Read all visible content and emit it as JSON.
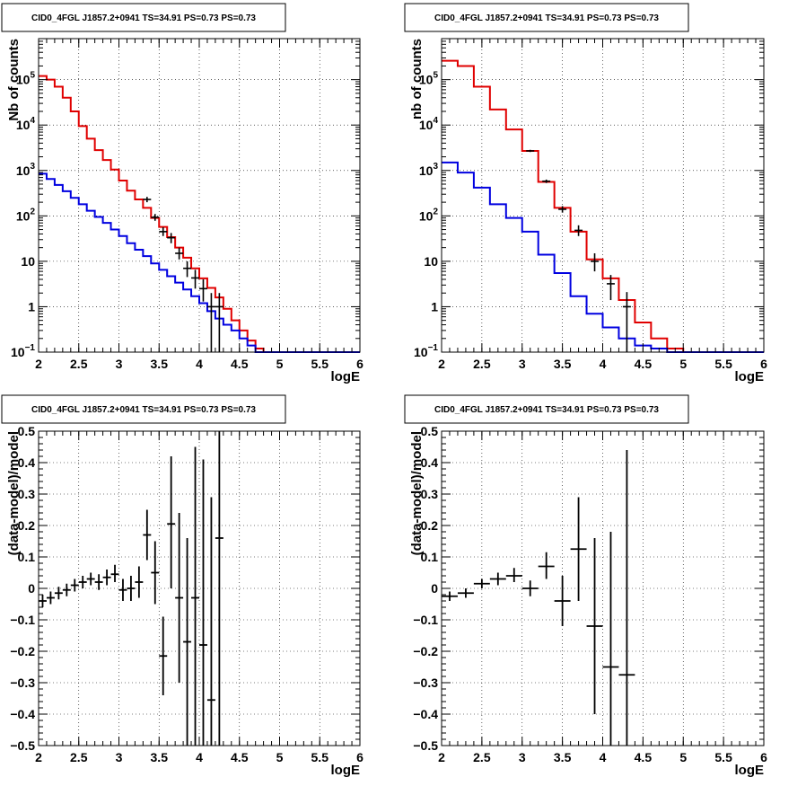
{
  "chart_data": [
    {
      "type": "step",
      "title": "CID0_4FGL J1857.2+0941 TS=34.91 PS=0.73 PS=0.73",
      "xlabel": "logE",
      "ylabel": "Nb of counts",
      "xlim": [
        2,
        6
      ],
      "ylim": [
        0.1,
        800000
      ],
      "yscale": "log",
      "grid": true,
      "x_ticks": [
        "2",
        "2.5",
        "3",
        "3.5",
        "4",
        "4.5",
        "5",
        "5.5",
        "6"
      ],
      "y_ticks": [
        {
          "v": 0.1,
          "base": "10",
          "exp": "−1"
        },
        {
          "v": 1,
          "t": "1"
        },
        {
          "v": 10,
          "t": "10"
        },
        {
          "v": 100,
          "base": "10",
          "exp": "2"
        },
        {
          "v": 1000,
          "base": "10",
          "exp": "3"
        },
        {
          "v": 10000,
          "base": "10",
          "exp": "4"
        },
        {
          "v": 100000,
          "base": "10",
          "exp": "5"
        }
      ],
      "bin_edges": [
        2,
        2.1,
        2.2,
        2.3,
        2.4,
        2.5,
        2.6,
        2.7,
        2.8,
        2.9,
        3.0,
        3.1,
        3.2,
        3.3,
        3.4,
        3.5,
        3.6,
        3.7,
        3.8,
        3.9,
        4.0,
        4.1,
        4.2,
        4.3,
        4.4,
        4.5,
        4.6,
        4.7,
        4.8,
        4.9,
        5.0,
        5.1,
        5.2,
        5.3,
        5.4,
        5.5,
        5.6,
        5.7,
        5.8,
        5.9,
        6.0
      ],
      "series": [
        {
          "role": "model-total",
          "color": "#e00000",
          "values": [
            120000,
            100000,
            70000,
            40000,
            20000,
            9500,
            5000,
            2800,
            1700,
            1050,
            600,
            360,
            230,
            150,
            90,
            57,
            34,
            20,
            12,
            7,
            4.2,
            2.6,
            1.6,
            0.9,
            0.5,
            0.3,
            0.18,
            0.12,
            0.1,
            0.1,
            0.1,
            0.1,
            0.1,
            0.1,
            0.1,
            0.1,
            0.1,
            0.1,
            0.1,
            0.1
          ]
        },
        {
          "role": "model-component",
          "color": "#0000e0",
          "values": [
            850,
            650,
            480,
            350,
            250,
            180,
            130,
            95,
            70,
            50,
            36,
            25,
            18,
            13,
            9,
            6.5,
            4.7,
            3.4,
            2.4,
            1.7,
            1.2,
            0.8,
            0.55,
            0.4,
            0.3,
            0.2,
            0.14,
            0.1,
            0.1,
            0.1,
            0.1,
            0.1,
            0.1,
            0.1,
            0.1,
            0.1,
            0.1,
            0.1,
            0.1,
            0.1
          ]
        },
        {
          "role": "data",
          "color": "#000000",
          "points": [
            {
              "x": 3.35,
              "y": 230,
              "lo": 200,
              "hi": 262
            },
            {
              "x": 3.45,
              "y": 93,
              "lo": 78,
              "hi": 110
            },
            {
              "x": 3.55,
              "y": 45,
              "lo": 36,
              "hi": 56
            },
            {
              "x": 3.65,
              "y": 33,
              "lo": 25,
              "hi": 42
            },
            {
              "x": 3.75,
              "y": 15,
              "lo": 11,
              "hi": 20
            },
            {
              "x": 3.85,
              "y": 7,
              "lo": 4.5,
              "hi": 10
            },
            {
              "x": 3.95,
              "y": 4.3,
              "lo": 2.5,
              "hi": 6.5
            },
            {
              "x": 4.05,
              "y": 2.5,
              "lo": 1.3,
              "hi": 4
            },
            {
              "x": 4.15,
              "y": 1.0,
              "lo": 0.1,
              "hi": 2.0
            },
            {
              "x": 4.25,
              "y": 1.0,
              "lo": 0.1,
              "hi": 2.0
            }
          ]
        }
      ]
    },
    {
      "type": "step",
      "title": "CID0_4FGL J1857.2+0941 TS=34.91 PS=0.73 PS=0.73",
      "xlabel": "logE",
      "ylabel": "nb of counts",
      "xlim": [
        2,
        6
      ],
      "ylim": [
        0.1,
        800000
      ],
      "yscale": "log",
      "grid": true,
      "x_ticks": [
        "2",
        "2.5",
        "3",
        "3.5",
        "4",
        "4.5",
        "5",
        "5.5",
        "6"
      ],
      "y_ticks": [
        {
          "v": 0.1,
          "base": "10",
          "exp": "−1"
        },
        {
          "v": 1,
          "t": "1"
        },
        {
          "v": 10,
          "t": "10"
        },
        {
          "v": 100,
          "base": "10",
          "exp": "2"
        },
        {
          "v": 1000,
          "base": "10",
          "exp": "3"
        },
        {
          "v": 10000,
          "base": "10",
          "exp": "4"
        },
        {
          "v": 100000,
          "base": "10",
          "exp": "5"
        }
      ],
      "bin_edges": [
        2,
        2.2,
        2.4,
        2.6,
        2.8,
        3.0,
        3.2,
        3.4,
        3.6,
        3.8,
        4.0,
        4.2,
        4.4,
        4.6,
        4.8,
        5.0,
        5.2,
        5.4,
        5.6,
        5.8,
        6.0
      ],
      "series": [
        {
          "role": "model-total",
          "color": "#e00000",
          "values": [
            260000,
            200000,
            70000,
            22000,
            8000,
            2700,
            560,
            150,
            45,
            11,
            4.2,
            1.4,
            0.45,
            0.2,
            0.12,
            0.1,
            0.1,
            0.1,
            0.1,
            0.1
          ]
        },
        {
          "role": "model-component",
          "color": "#0000e0",
          "values": [
            1500,
            900,
            420,
            180,
            90,
            45,
            14,
            5.5,
            1.7,
            0.7,
            0.35,
            0.2,
            0.14,
            0.12,
            0.1,
            0.1,
            0.1,
            0.1,
            0.1,
            0.1
          ]
        },
        {
          "role": "data",
          "color": "#000000",
          "points": [
            {
              "x": 3.1,
              "y": 2700,
              "lo": 2550,
              "hi": 2850
            },
            {
              "x": 3.3,
              "y": 580,
              "lo": 530,
              "hi": 630
            },
            {
              "x": 3.5,
              "y": 140,
              "lo": 118,
              "hi": 164
            },
            {
              "x": 3.7,
              "y": 48,
              "lo": 36,
              "hi": 62
            },
            {
              "x": 3.9,
              "y": 10,
              "lo": 6,
              "hi": 15
            },
            {
              "x": 4.1,
              "y": 3.2,
              "lo": 1.4,
              "hi": 5
            },
            {
              "x": 4.3,
              "y": 1.0,
              "lo": 0.1,
              "hi": 2.1
            }
          ]
        }
      ]
    },
    {
      "type": "scatter",
      "title": "CID0_4FGL J1857.2+0941 TS=34.91 PS=0.73 PS=0.73",
      "xlabel": "logE",
      "ylabel": "(data-model)/model",
      "xlim": [
        2,
        6
      ],
      "ylim": [
        -0.5,
        0.5
      ],
      "grid": true,
      "x_ticks": [
        "2",
        "2.5",
        "3",
        "3.5",
        "4",
        "4.5",
        "5",
        "5.5",
        "6"
      ],
      "y_ticks": [
        "−0.5",
        "−0.4",
        "−0.3",
        "−0.2",
        "−0.1",
        "0",
        "0.1",
        "0.2",
        "0.3",
        "0.4",
        "0.5"
      ],
      "xerr": 0.05,
      "points": [
        {
          "x": 2.05,
          "y": -0.04,
          "lo": -0.06,
          "hi": -0.02
        },
        {
          "x": 2.15,
          "y": -0.03,
          "lo": -0.05,
          "hi": -0.01
        },
        {
          "x": 2.25,
          "y": -0.015,
          "lo": -0.035,
          "hi": 0.005
        },
        {
          "x": 2.35,
          "y": -0.005,
          "lo": -0.025,
          "hi": 0.015
        },
        {
          "x": 2.45,
          "y": 0.01,
          "lo": -0.01,
          "hi": 0.03
        },
        {
          "x": 2.55,
          "y": 0.02,
          "lo": 0.0,
          "hi": 0.04
        },
        {
          "x": 2.65,
          "y": 0.03,
          "lo": 0.01,
          "hi": 0.05
        },
        {
          "x": 2.75,
          "y": 0.02,
          "lo": -0.005,
          "hi": 0.045
        },
        {
          "x": 2.85,
          "y": 0.035,
          "lo": 0.01,
          "hi": 0.06
        },
        {
          "x": 2.95,
          "y": 0.045,
          "lo": 0.02,
          "hi": 0.075
        },
        {
          "x": 3.05,
          "y": -0.005,
          "lo": -0.04,
          "hi": 0.03
        },
        {
          "x": 3.15,
          "y": 0.0,
          "lo": -0.04,
          "hi": 0.04
        },
        {
          "x": 3.25,
          "y": 0.02,
          "lo": -0.03,
          "hi": 0.07
        },
        {
          "x": 3.35,
          "y": 0.17,
          "lo": 0.09,
          "hi": 0.25
        },
        {
          "x": 3.45,
          "y": 0.05,
          "lo": -0.05,
          "hi": 0.15
        },
        {
          "x": 3.55,
          "y": -0.215,
          "lo": -0.34,
          "hi": -0.09
        },
        {
          "x": 3.65,
          "y": 0.205,
          "lo": 0.0,
          "hi": 0.42
        },
        {
          "x": 3.75,
          "y": -0.03,
          "lo": -0.3,
          "hi": 0.24
        },
        {
          "x": 3.85,
          "y": -0.17,
          "lo": -0.5,
          "hi": 0.16
        },
        {
          "x": 3.95,
          "y": -0.03,
          "lo": -0.5,
          "hi": 0.45
        },
        {
          "x": 4.05,
          "y": -0.18,
          "lo": -0.5,
          "hi": 0.41
        },
        {
          "x": 4.15,
          "y": -0.355,
          "lo": -0.5,
          "hi": 0.29
        },
        {
          "x": 4.25,
          "y": 0.16,
          "lo": -0.5,
          "hi": 0.5
        }
      ]
    },
    {
      "type": "scatter",
      "title": "CID0_4FGL J1857.2+0941 TS=34.91 PS=0.73 PS=0.73",
      "xlabel": "logE",
      "ylabel": "(data-model)/model",
      "xlim": [
        2,
        6
      ],
      "ylim": [
        -0.5,
        0.5
      ],
      "grid": true,
      "x_ticks": [
        "2",
        "2.5",
        "3",
        "3.5",
        "4",
        "4.5",
        "5",
        "5.5",
        "6"
      ],
      "y_ticks": [
        "−0.5",
        "−0.4",
        "−0.3",
        "−0.2",
        "−0.1",
        "0",
        "0.1",
        "0.2",
        "0.3",
        "0.4",
        "0.5"
      ],
      "xerr": 0.1,
      "points": [
        {
          "x": 2.1,
          "y": -0.025,
          "lo": -0.04,
          "hi": -0.01
        },
        {
          "x": 2.3,
          "y": -0.015,
          "lo": -0.03,
          "hi": 0.0
        },
        {
          "x": 2.5,
          "y": 0.015,
          "lo": 0.0,
          "hi": 0.03
        },
        {
          "x": 2.7,
          "y": 0.03,
          "lo": 0.01,
          "hi": 0.05
        },
        {
          "x": 2.9,
          "y": 0.04,
          "lo": 0.02,
          "hi": 0.065
        },
        {
          "x": 3.1,
          "y": 0.0,
          "lo": -0.025,
          "hi": 0.025
        },
        {
          "x": 3.3,
          "y": 0.07,
          "lo": 0.03,
          "hi": 0.115
        },
        {
          "x": 3.5,
          "y": -0.04,
          "lo": -0.12,
          "hi": 0.04
        },
        {
          "x": 3.7,
          "y": 0.125,
          "lo": -0.04,
          "hi": 0.29
        },
        {
          "x": 3.9,
          "y": -0.12,
          "lo": -0.4,
          "hi": 0.16
        },
        {
          "x": 4.1,
          "y": -0.25,
          "lo": -0.5,
          "hi": 0.18
        },
        {
          "x": 4.3,
          "y": -0.275,
          "lo": -0.5,
          "hi": 0.44
        }
      ]
    }
  ]
}
